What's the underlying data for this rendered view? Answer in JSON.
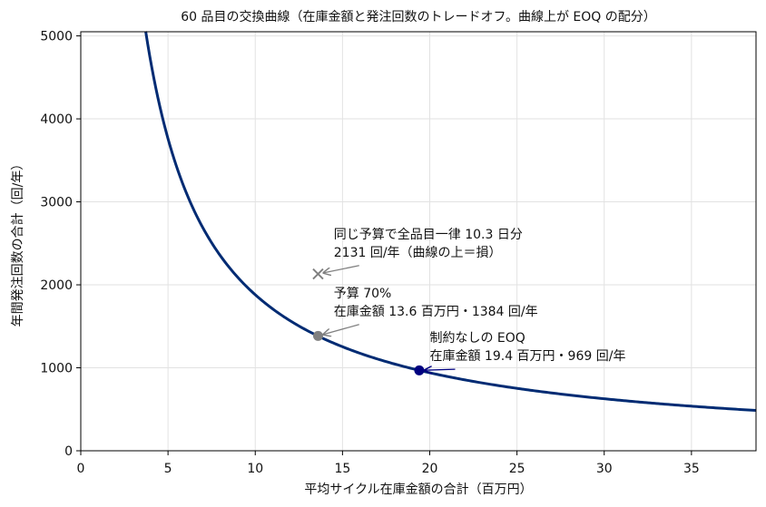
{
  "chart_data": {
    "type": "line",
    "title": "60 品目の交換曲線（在庫金額と発注回数のトレードオフ。曲線上が EOQ の配分）",
    "xlabel": "平均サイクル在庫金額の合計（百万円）",
    "ylabel": "年間発注回数の合計（回/年）",
    "xlim": [
      0,
      38.7
    ],
    "ylim": [
      0,
      5050
    ],
    "xticks": [
      0,
      5,
      10,
      15,
      20,
      25,
      30,
      35
    ],
    "yticks": [
      0,
      1000,
      2000,
      3000,
      4000,
      5000
    ],
    "grid": true,
    "curve": {
      "relation": "x * y = 18800",
      "x": [
        3.72,
        4,
        4.5,
        5,
        6,
        7,
        8,
        9,
        10,
        12,
        13.6,
        15,
        17.5,
        19.4,
        22,
        25,
        30,
        35,
        38.7
      ],
      "y": [
        5054,
        4700,
        4178,
        3760,
        3133,
        2686,
        2350,
        2089,
        1880,
        1567,
        1384,
        1253,
        1074,
        969,
        855,
        752,
        627,
        537,
        486
      ],
      "color": "#002b73"
    },
    "points": [
      {
        "x": 19.4,
        "y": 969,
        "marker": "circle",
        "color": "#000080"
      },
      {
        "x": 13.6,
        "y": 1384,
        "marker": "circle",
        "color": "#808080"
      },
      {
        "x": 13.6,
        "y": 2131,
        "marker": "x",
        "color": "#808080"
      }
    ],
    "annotations": [
      {
        "lines": [
          "制約なしの EOQ",
          "在庫金額 19.4 百万円・969 回/年"
        ],
        "target": {
          "x": 19.4,
          "y": 969
        },
        "text_at": {
          "x": 20.0,
          "y": 1310
        },
        "color": "#000080"
      },
      {
        "lines": [
          "予算 70%",
          "在庫金額 13.6 百万円・1384 回/年"
        ],
        "target": {
          "x": 13.6,
          "y": 1384
        },
        "text_at": {
          "x": 14.5,
          "y": 1850
        },
        "color": "#808080"
      },
      {
        "lines": [
          "同じ予算で全品目一律 10.3 日分",
          "2131 回/年（曲線の上＝損）"
        ],
        "target": {
          "x": 13.6,
          "y": 2131
        },
        "text_at": {
          "x": 14.5,
          "y": 2560
        },
        "color": "#808080"
      }
    ]
  }
}
